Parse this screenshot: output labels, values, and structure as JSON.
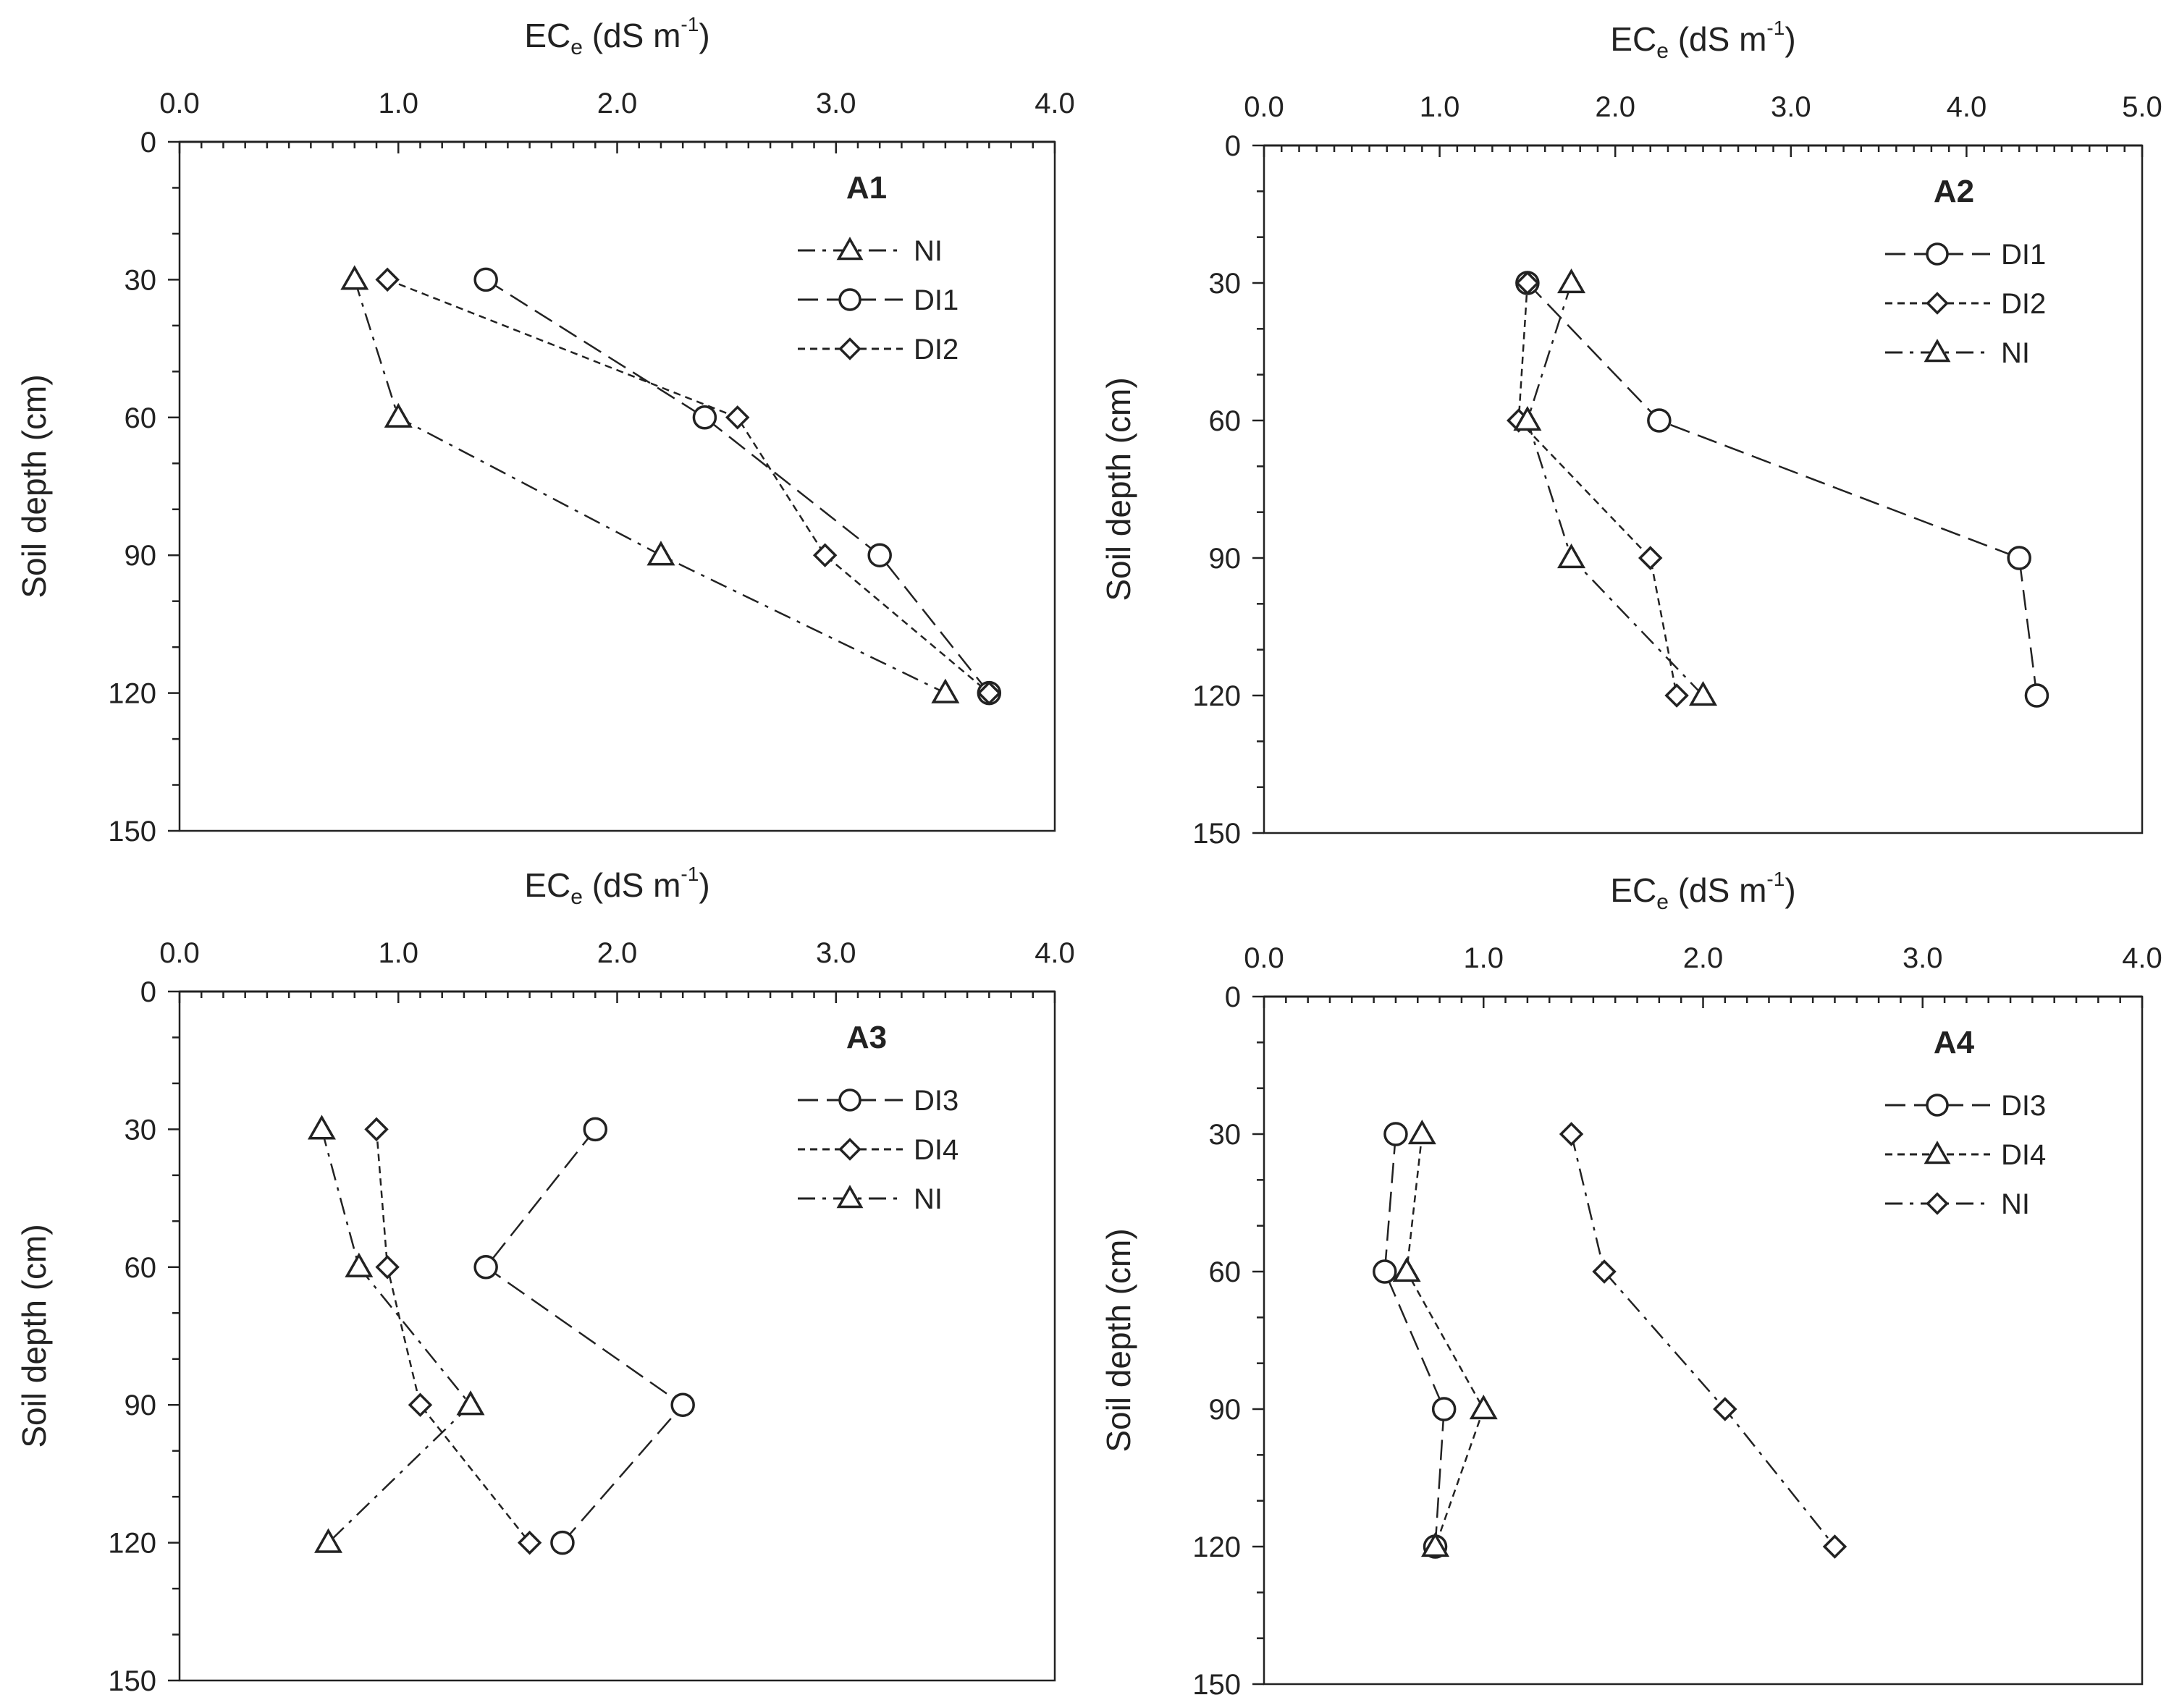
{
  "chart_data": [
    {
      "type": "line",
      "panel": "A1",
      "title": "A1",
      "xlabel": "EC",
      "xlabel_sub": "e",
      "xlabel_unit": " (dS m",
      "xlabel_sup": "-1",
      "xlabel_close": ")",
      "ylabel": "Soil depth (cm)",
      "xlim": [
        0,
        4
      ],
      "ylim": [
        0,
        150
      ],
      "xticks": [
        "0.0",
        "1.0",
        "2.0",
        "3.0",
        "4.0"
      ],
      "yticks": [
        "0",
        "30",
        "60",
        "90",
        "120",
        "150"
      ],
      "y": [
        30,
        60,
        90,
        120
      ],
      "legend_position": "top-right",
      "series": [
        {
          "name": "NI",
          "marker": "triangle",
          "dash": "dashdot",
          "values": [
            0.8,
            1.0,
            2.2,
            3.5
          ]
        },
        {
          "name": "DI1",
          "marker": "circle",
          "dash": "longdash",
          "values": [
            1.4,
            2.4,
            3.2,
            3.7
          ]
        },
        {
          "name": "DI2",
          "marker": "diamond",
          "dash": "short",
          "values": [
            0.95,
            2.55,
            2.95,
            3.7
          ]
        }
      ]
    },
    {
      "type": "line",
      "panel": "A2",
      "title": "A2",
      "xlabel": "EC",
      "xlabel_sub": "e",
      "xlabel_unit": " (dS m",
      "xlabel_sup": "-1",
      "xlabel_close": ")",
      "ylabel": "Soil depth (cm)",
      "xlim": [
        0,
        5
      ],
      "ylim": [
        0,
        150
      ],
      "xticks": [
        "0.0",
        "1.0",
        "2.0",
        "3.0",
        "4.0",
        "5.0"
      ],
      "yticks": [
        "0",
        "30",
        "60",
        "90",
        "120",
        "150"
      ],
      "y": [
        30,
        60,
        90,
        120
      ],
      "legend_position": "top-right",
      "series": [
        {
          "name": "DI1",
          "marker": "circle",
          "dash": "longdash",
          "values": [
            1.5,
            2.25,
            4.3,
            4.4
          ]
        },
        {
          "name": "DI2",
          "marker": "diamond",
          "dash": "short",
          "values": [
            1.5,
            1.45,
            2.2,
            2.35
          ]
        },
        {
          "name": "NI",
          "marker": "triangle",
          "dash": "dashdot",
          "values": [
            1.75,
            1.5,
            1.75,
            2.5
          ]
        }
      ]
    },
    {
      "type": "line",
      "panel": "A3",
      "title": "A3",
      "xlabel": "EC",
      "xlabel_sub": "e",
      "xlabel_unit": " (dS m",
      "xlabel_sup": "-1",
      "xlabel_close": ")",
      "ylabel": "Soil depth (cm)",
      "xlim": [
        0,
        4
      ],
      "ylim": [
        0,
        150
      ],
      "xticks": [
        "0.0",
        "1.0",
        "2.0",
        "3.0",
        "4.0"
      ],
      "yticks": [
        "0",
        "30",
        "60",
        "90",
        "120",
        "150"
      ],
      "y": [
        30,
        60,
        90,
        120
      ],
      "legend_position": "top-right",
      "series": [
        {
          "name": "DI3",
          "marker": "circle",
          "dash": "longdash",
          "values": [
            1.9,
            1.4,
            2.3,
            1.75
          ]
        },
        {
          "name": "DI4",
          "marker": "diamond",
          "dash": "short",
          "values": [
            0.9,
            0.95,
            1.1,
            1.6
          ]
        },
        {
          "name": "NI",
          "marker": "triangle",
          "dash": "dashdot",
          "values": [
            0.65,
            0.82,
            1.33,
            0.68
          ]
        }
      ]
    },
    {
      "type": "line",
      "panel": "A4",
      "title": "A4",
      "xlabel": "EC",
      "xlabel_sub": "e",
      "xlabel_unit": " (dS m",
      "xlabel_sup": "-1",
      "xlabel_close": ")",
      "ylabel": "Soil depth (cm)",
      "xlim": [
        0,
        4
      ],
      "ylim": [
        0,
        150
      ],
      "xticks": [
        "0.0",
        "1.0",
        "2.0",
        "3.0",
        "4.0"
      ],
      "yticks": [
        "0",
        "30",
        "60",
        "90",
        "120",
        "150"
      ],
      "y": [
        30,
        60,
        90,
        120
      ],
      "legend_position": "top-right",
      "series": [
        {
          "name": "DI3",
          "marker": "circle",
          "dash": "longdash",
          "values": [
            0.6,
            0.55,
            0.82,
            0.78
          ]
        },
        {
          "name": "DI4",
          "marker": "triangle",
          "dash": "short",
          "values": [
            0.72,
            0.65,
            1.0,
            0.78
          ]
        },
        {
          "name": "NI",
          "marker": "diamond",
          "dash": "dashdot",
          "values": [
            1.4,
            1.55,
            2.1,
            2.6
          ]
        }
      ]
    }
  ]
}
